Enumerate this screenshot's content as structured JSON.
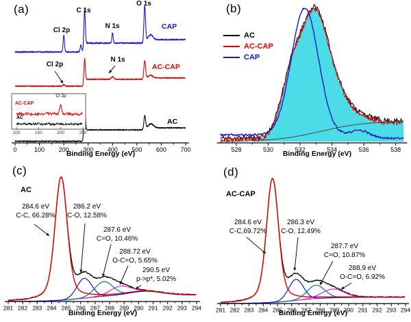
{
  "figure": {
    "background": "#ffffff"
  },
  "chart_data": [
    {
      "id": "a",
      "type": "line",
      "panel_label": "(a)",
      "xlabel": "Binding Energy (eV)",
      "xlim": [
        0,
        700
      ],
      "xticks": [
        0,
        100,
        200,
        300,
        400,
        500,
        600,
        700
      ],
      "peak_labels": [
        {
          "text": "Cl 2p",
          "x": 200
        },
        {
          "text": "C 1s",
          "x": 285
        },
        {
          "text": "N 1s",
          "x": 400
        },
        {
          "text": "O 1s",
          "x": 532
        }
      ],
      "arrow_labels": [
        {
          "text": "Cl 2p",
          "x": 205,
          "series": "AC-CAP"
        },
        {
          "text": "N 1s",
          "x": 400,
          "series": "AC-CAP"
        }
      ],
      "series": [
        {
          "name": "CAP",
          "color": "#1616cc",
          "base": 0.665,
          "steps": [
            [
              285,
              0.065
            ],
            [
              532,
              0.025
            ]
          ],
          "noise": 0.005,
          "peaks": [
            [
              200,
              0.12,
              2.8
            ],
            [
              270,
              0.05,
              3
            ],
            [
              285,
              0.27,
              3
            ],
            [
              400,
              0.075,
              2.5
            ],
            [
              532,
              0.26,
              3.2
            ],
            [
              557,
              0.035,
              9
            ]
          ]
        },
        {
          "name": "AC-CAP",
          "color": "#e00000",
          "base": 0.415,
          "steps": [
            [
              285,
              0.05
            ],
            [
              532,
              0.01
            ]
          ],
          "noise": 0.004,
          "peaks": [
            [
              200,
              0.012,
              3
            ],
            [
              285,
              0.17,
              3
            ],
            [
              400,
              0.02,
              5
            ],
            [
              532,
              0.13,
              3.5
            ],
            [
              556,
              0.02,
              9
            ]
          ]
        },
        {
          "name": "AC",
          "color": "#000000",
          "base": 0.012,
          "steps": [
            [
              285,
              0.083
            ],
            [
              532,
              0.015
            ]
          ],
          "noise": 0.004,
          "peaks": [
            [
              285,
              0.27,
              3
            ],
            [
              532,
              0.095,
              3.5
            ],
            [
              558,
              0.03,
              10
            ]
          ]
        }
      ],
      "inset": {
        "xlim": [
          100,
          250
        ],
        "xticks": [
          100,
          150,
          200,
          250
        ],
        "peak_label": "Cl 2p",
        "series": [
          {
            "name": "AC-CAP",
            "color": "#e00000",
            "base": 0.42,
            "peaks": [
              [
                200,
                0.3,
                2.2
              ]
            ],
            "noise": 0.05
          },
          {
            "name": "AC",
            "color": "#000000",
            "base": 0.1,
            "peaks": [],
            "noise": 0.04
          }
        ]
      }
    },
    {
      "id": "b",
      "type": "line",
      "panel_label": "(b)",
      "xlabel": "Binding Energy (eV)",
      "xlim": [
        527,
        538.5
      ],
      "xticks": [
        528,
        530,
        532,
        534,
        536,
        538
      ],
      "legend": [
        {
          "label": "AC",
          "color": "#000000"
        },
        {
          "label": "AC-CAP",
          "color": "#e00000"
        },
        {
          "label": "CAP",
          "color": "#1616cc"
        }
      ],
      "fill_color": "#4bdce8",
      "envelope": {
        "base": 0.012,
        "gaussians": [
          [
            531.4,
            0.65,
            0.39
          ],
          [
            532.9,
            0.85,
            0.9
          ],
          [
            534.4,
            0.75,
            0.18
          ],
          [
            535.8,
            0.8,
            0.05
          ]
        ],
        "tail": [
          533.6,
          1.3,
          0.135
        ]
      },
      "series": [
        {
          "name": "AC",
          "color": "#000000",
          "role": "envelope",
          "offset": 0.012,
          "noise": 0.021,
          "seed": 11
        },
        {
          "name": "AC-CAP",
          "color": "#e00000",
          "role": "envelope",
          "offset": 0,
          "noise": 0.02,
          "seed": 23
        },
        {
          "name": "CAP",
          "color": "#1616cc",
          "role": "own",
          "base": 0.05,
          "gaussians": [
            [
              532.3,
              0.85,
              0.97
            ],
            [
              535.75,
              0.55,
              0.05
            ]
          ],
          "dip": [
            535.5,
            0.8,
            0.025
          ],
          "noise": 0.008,
          "seed": 37
        },
        {
          "name": "background",
          "color": "#474747",
          "role": "tail",
          "tail": [
            533.3,
            1.4,
            0.155
          ],
          "noise": 0,
          "seed": 1
        }
      ]
    },
    {
      "id": "c",
      "type": "line",
      "panel_label": "(c)",
      "sample": "AC",
      "xlabel": "Binding Energy (eV)",
      "xlim": [
        281,
        294
      ],
      "xticks": [
        281,
        282,
        283,
        284,
        285,
        286,
        287,
        288,
        289,
        290,
        291,
        292,
        293,
        294
      ],
      "baseline": {
        "color": "#8b1a1a",
        "amp": 0.052,
        "center": 286.2,
        "width": 1.1,
        "satellite": [
          290.5,
          1.1,
          0.03
        ]
      },
      "components": [
        {
          "binding_energy": "284.6 eV",
          "assignment": "C-C",
          "percent": "66.28%",
          "color": "#e00000",
          "center": 284.65,
          "amp": 0.97,
          "width": 0.4,
          "shape": "voigt"
        },
        {
          "binding_energy": "286.2 eV",
          "assignment": "C-O",
          "percent": "12.58%",
          "color": "#1616cc",
          "center": 286.25,
          "amp": 0.155,
          "width": 0.52,
          "shape": "gauss"
        },
        {
          "binding_energy": "287.6 eV",
          "assignment": "C=O",
          "percent": "10.46%",
          "color": "#007f7f",
          "center": 287.6,
          "amp": 0.115,
          "width": 0.62,
          "shape": "gauss"
        },
        {
          "binding_energy": "288.72 eV",
          "assignment": "O-C=O",
          "percent": "5.65%",
          "color": "#e81ec8",
          "center": 288.75,
          "amp": 0.065,
          "width": 0.72,
          "shape": "gauss"
        }
      ],
      "annotations": [
        {
          "line1": "284.6 eV",
          "line2": "C-C, 66.28%"
        },
        {
          "line1": "286.2 eV",
          "line2": "C-O, 12.58%"
        },
        {
          "line1": "287.6 eV",
          "line2": "C=O, 10.46%"
        },
        {
          "line1": "288.72 eV",
          "line2": "O-C=O, 5.65%"
        },
        {
          "line1": "290.5 eV",
          "line2": "p->p*, 5.02%"
        }
      ]
    },
    {
      "id": "d",
      "type": "line",
      "panel_label": "(d)",
      "sample": "AC-CAP",
      "xlabel": "Binding Energy (eV)",
      "xlim": [
        281,
        294
      ],
      "xticks": [
        281,
        282,
        283,
        284,
        285,
        286,
        287,
        288,
        289,
        290,
        291,
        292,
        293,
        294
      ],
      "baseline": {
        "color": "#d428c8",
        "amp": 0.05,
        "center": 286.3,
        "width": 1.1,
        "satellite": null
      },
      "components": [
        {
          "binding_energy": "284.6 eV",
          "assignment": "C-C",
          "percent": "69.72%",
          "color": "#e00000",
          "center": 284.65,
          "amp": 0.975,
          "width": 0.4,
          "shape": "voigt"
        },
        {
          "binding_energy": "286.3 eV",
          "assignment": "C-O",
          "percent": "12.49%",
          "color": "#1616cc",
          "center": 286.3,
          "amp": 0.165,
          "width": 0.52,
          "shape": "gauss"
        },
        {
          "binding_energy": "287.7 eV",
          "assignment": "C=O",
          "percent": "10.87%",
          "color": "#007f7f",
          "center": 287.7,
          "amp": 0.105,
          "width": 0.62,
          "shape": "gauss"
        },
        {
          "binding_energy": "288.9 eV",
          "assignment": "O-C=O",
          "percent": "6.92%",
          "color": "#e81ec8",
          "center": 288.9,
          "amp": 0.068,
          "width": 0.78,
          "shape": "gauss"
        }
      ],
      "annotations": [
        {
          "line1": "284.6 eV",
          "line2": "C-C,69.72%"
        },
        {
          "line1": "286.3 eV",
          "line2": "C-O, 12.49%"
        },
        {
          "line1": "287.7 eV",
          "line2": "C=O, 10.87%"
        },
        {
          "line1": "288.9 eV",
          "line2": "O-C=O, 6.92%"
        }
      ]
    }
  ]
}
